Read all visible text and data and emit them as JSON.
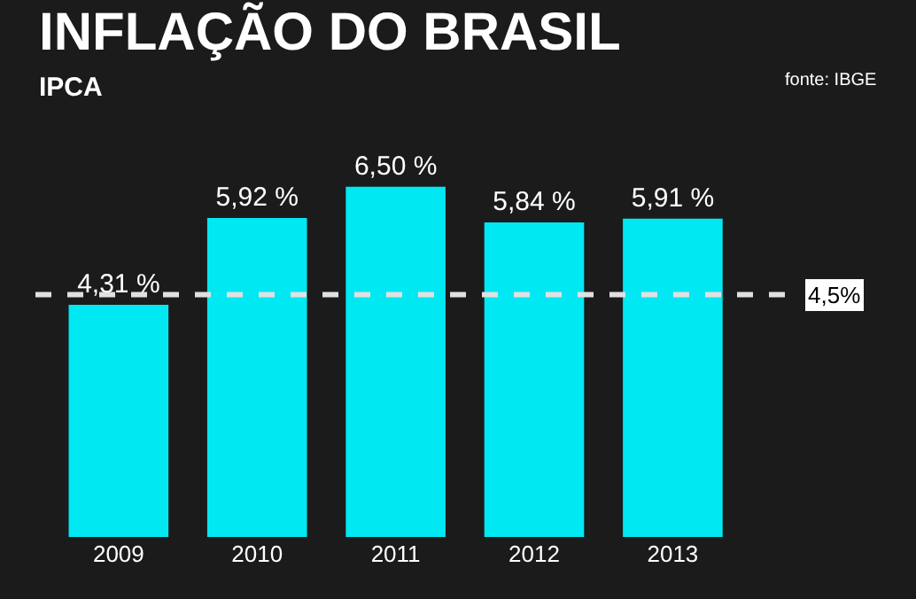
{
  "chart_data": {
    "type": "bar",
    "title": "INFLAÇÃO DO BRASIL",
    "subtitle": "IPCA",
    "annotations": [
      "fonte: IBGE"
    ],
    "categories": [
      "2009",
      "2010",
      "2011",
      "2012",
      "2013"
    ],
    "values": [
      4.31,
      5.92,
      6.5,
      5.84,
      5.91
    ],
    "value_labels": [
      "4,31 %",
      "5,92 %",
      "6,50 %",
      "5,84 %",
      "5,91 %"
    ],
    "color": "#00e8f2",
    "tick_labels": "x",
    "grid": false,
    "legend": false,
    "ref_lines": [
      {
        "axis": "y",
        "value": 4.5,
        "label": "4,5%",
        "color": "#e0e0e0",
        "line_style": "dashed"
      }
    ]
  }
}
